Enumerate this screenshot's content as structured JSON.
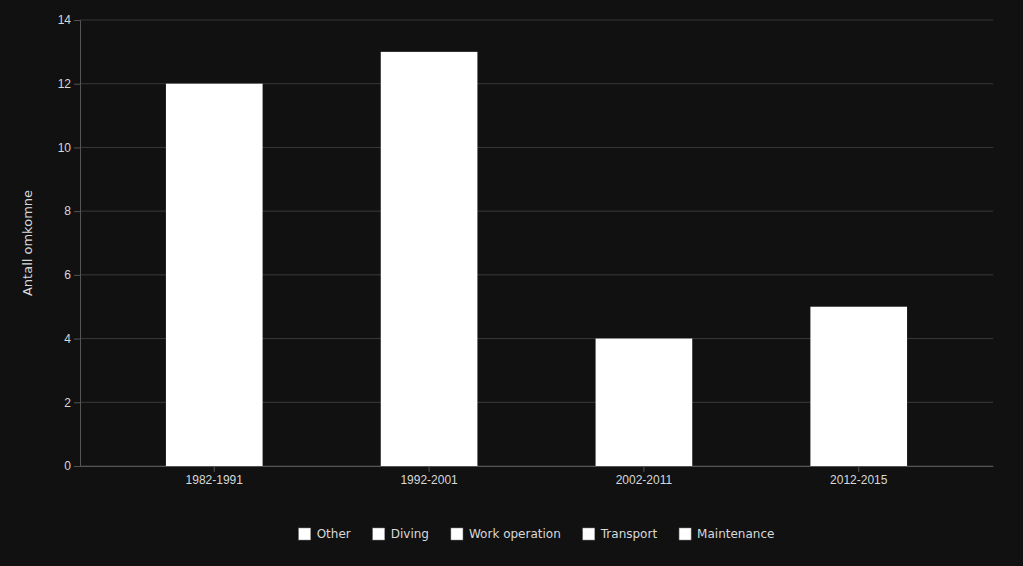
{
  "chart_data": {
    "type": "bar",
    "categories": [
      "1982-1991",
      "1992-2001",
      "2002-2011",
      "2012-2015"
    ],
    "values": [
      12,
      13,
      4,
      5
    ],
    "color": "#ffffff",
    "ylabel": "Antall omkomne",
    "ylim": [
      0,
      14
    ],
    "yticks": [
      0,
      2,
      4,
      6,
      8,
      10,
      12,
      14
    ],
    "grid": true,
    "legend": "bottom",
    "legend_labels": [
      "Other",
      "Diving",
      "Work operation",
      "Transport",
      "Maintenance"
    ]
  }
}
